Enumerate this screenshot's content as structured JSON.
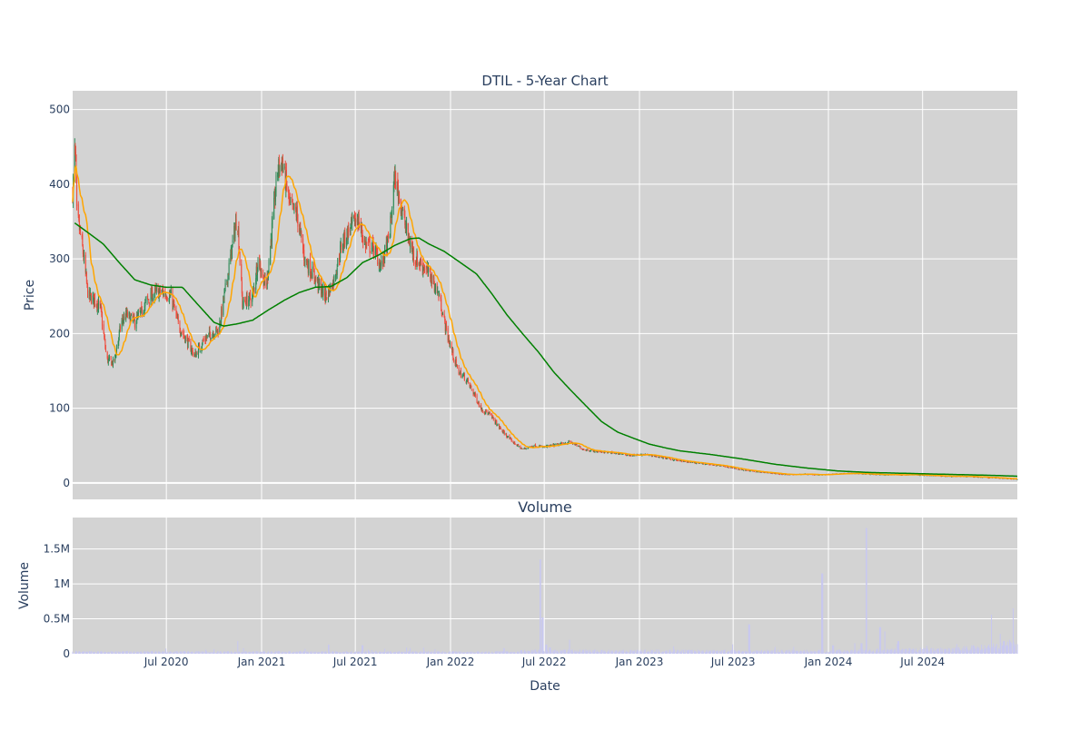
{
  "chart_data": [
    {
      "type": "candlestick",
      "title": "DTIL - 5-Year Chart",
      "xlabel": "",
      "ylabel": "Price",
      "ylim": [
        -22,
        525
      ],
      "yticks": [
        0,
        100,
        200,
        300,
        400,
        500
      ],
      "grid": true,
      "plot_bgcolor": "#d3d3d3",
      "up_color": "#2e8b57",
      "down_color": "#ef4b3c",
      "ma_colors": {
        "short": "#ffa500",
        "long": "#008000"
      },
      "price_keypoints": [
        [
          "2020-01-02",
          390
        ],
        [
          "2020-01-06",
          445
        ],
        [
          "2020-01-08",
          430
        ],
        [
          "2020-01-10",
          360
        ],
        [
          "2020-01-20",
          320
        ],
        [
          "2020-02-01",
          250
        ],
        [
          "2020-02-15",
          245
        ],
        [
          "2020-02-25",
          232
        ],
        [
          "2020-03-08",
          165
        ],
        [
          "2020-03-22",
          160
        ],
        [
          "2020-04-05",
          215
        ],
        [
          "2020-04-15",
          225
        ],
        [
          "2020-05-01",
          215
        ],
        [
          "2020-05-15",
          230
        ],
        [
          "2020-05-25",
          245
        ],
        [
          "2020-06-10",
          255
        ],
        [
          "2020-06-25",
          255
        ],
        [
          "2020-07-10",
          250
        ],
        [
          "2020-07-25",
          210
        ],
        [
          "2020-08-10",
          190
        ],
        [
          "2020-08-25",
          170
        ],
        [
          "2020-09-10",
          190
        ],
        [
          "2020-09-25",
          200
        ],
        [
          "2020-10-10",
          205
        ],
        [
          "2020-10-28",
          280
        ],
        [
          "2020-11-15",
          360
        ],
        [
          "2020-11-25",
          240
        ],
        [
          "2020-12-15",
          250
        ],
        [
          "2020-12-25",
          300
        ],
        [
          "2021-01-10",
          260
        ],
        [
          "2021-02-01",
          420
        ],
        [
          "2021-02-10",
          430
        ],
        [
          "2021-02-25",
          370
        ],
        [
          "2021-03-10",
          360
        ],
        [
          "2021-03-25",
          300
        ],
        [
          "2021-04-10",
          280
        ],
        [
          "2021-04-25",
          260
        ],
        [
          "2021-05-05",
          250
        ],
        [
          "2021-05-20",
          270
        ],
        [
          "2021-06-05",
          320
        ],
        [
          "2021-06-20",
          340
        ],
        [
          "2021-07-05",
          355
        ],
        [
          "2021-07-20",
          320
        ],
        [
          "2021-08-05",
          315
        ],
        [
          "2021-08-20",
          290
        ],
        [
          "2021-09-05",
          330
        ],
        [
          "2021-09-15",
          410
        ],
        [
          "2021-09-25",
          380
        ],
        [
          "2021-10-10",
          330
        ],
        [
          "2021-10-25",
          300
        ],
        [
          "2021-11-10",
          290
        ],
        [
          "2021-11-25",
          275
        ],
        [
          "2021-12-10",
          250
        ],
        [
          "2021-12-25",
          200
        ],
        [
          "2022-01-15",
          150
        ],
        [
          "2022-01-30",
          140
        ],
        [
          "2022-02-15",
          120
        ],
        [
          "2022-03-01",
          100
        ],
        [
          "2022-03-20",
          90
        ],
        [
          "2022-04-10",
          70
        ],
        [
          "2022-05-01",
          55
        ],
        [
          "2022-05-20",
          45
        ],
        [
          "2022-06-10",
          50
        ],
        [
          "2022-07-01",
          48
        ],
        [
          "2022-08-01",
          52
        ],
        [
          "2022-08-20",
          55
        ],
        [
          "2022-09-15",
          45
        ],
        [
          "2022-10-15",
          42
        ],
        [
          "2022-11-15",
          40
        ],
        [
          "2022-12-15",
          37
        ],
        [
          "2023-01-15",
          38
        ],
        [
          "2023-02-15",
          34
        ],
        [
          "2023-03-15",
          30
        ],
        [
          "2023-04-15",
          27
        ],
        [
          "2023-05-15",
          25
        ],
        [
          "2023-06-15",
          22
        ],
        [
          "2023-07-15",
          18
        ],
        [
          "2023-08-15",
          15
        ],
        [
          "2023-09-15",
          13
        ],
        [
          "2023-10-15",
          11
        ],
        [
          "2023-11-15",
          12
        ],
        [
          "2023-12-15",
          11
        ],
        [
          "2024-01-15",
          12
        ],
        [
          "2024-02-15",
          13
        ],
        [
          "2024-03-15",
          12
        ],
        [
          "2024-04-15",
          11
        ],
        [
          "2024-05-15",
          11
        ],
        [
          "2024-06-15",
          11
        ],
        [
          "2024-07-15",
          10
        ],
        [
          "2024-08-15",
          9
        ],
        [
          "2024-09-15",
          9
        ],
        [
          "2024-10-15",
          8
        ],
        [
          "2024-11-15",
          7
        ],
        [
          "2024-12-31",
          5
        ]
      ],
      "moving_average_long_keypoints": [
        [
          "2020-01-02",
          350
        ],
        [
          "2020-02-01",
          335
        ],
        [
          "2020-03-01",
          320
        ],
        [
          "2020-04-01",
          295
        ],
        [
          "2020-05-01",
          272
        ],
        [
          "2020-06-01",
          265
        ],
        [
          "2020-07-01",
          262
        ],
        [
          "2020-08-01",
          262
        ],
        [
          "2020-09-01",
          238
        ],
        [
          "2020-10-01",
          215
        ],
        [
          "2020-10-20",
          210
        ],
        [
          "2020-11-15",
          213
        ],
        [
          "2020-12-15",
          218
        ],
        [
          "2021-01-15",
          232
        ],
        [
          "2021-02-15",
          245
        ],
        [
          "2021-03-15",
          255
        ],
        [
          "2021-04-15",
          262
        ],
        [
          "2021-05-15",
          263
        ],
        [
          "2021-06-15",
          275
        ],
        [
          "2021-07-15",
          295
        ],
        [
          "2021-08-15",
          305
        ],
        [
          "2021-09-15",
          318
        ],
        [
          "2021-10-15",
          327
        ],
        [
          "2021-11-01",
          328
        ],
        [
          "2021-11-20",
          320
        ],
        [
          "2021-12-20",
          310
        ],
        [
          "2022-01-20",
          295
        ],
        [
          "2022-02-20",
          280
        ],
        [
          "2022-03-20",
          255
        ],
        [
          "2022-04-20",
          225
        ],
        [
          "2022-05-20",
          200
        ],
        [
          "2022-06-20",
          175
        ],
        [
          "2022-07-20",
          148
        ],
        [
          "2022-08-20",
          125
        ],
        [
          "2022-09-20",
          103
        ],
        [
          "2022-10-20",
          82
        ],
        [
          "2022-11-20",
          68
        ],
        [
          "2022-12-20",
          60
        ],
        [
          "2023-01-20",
          52
        ],
        [
          "2023-02-20",
          47
        ],
        [
          "2023-03-20",
          43
        ],
        [
          "2023-05-20",
          38
        ],
        [
          "2023-07-20",
          32
        ],
        [
          "2023-09-20",
          25
        ],
        [
          "2023-11-20",
          20
        ],
        [
          "2024-01-20",
          16
        ],
        [
          "2024-03-20",
          14
        ],
        [
          "2024-05-20",
          13
        ],
        [
          "2024-07-20",
          12
        ],
        [
          "2024-09-20",
          11
        ],
        [
          "2024-11-20",
          10
        ],
        [
          "2024-12-31",
          9
        ]
      ]
    },
    {
      "type": "bar",
      "title": "Volume",
      "xlabel": "Date",
      "ylabel": "Volume",
      "ylim": [
        0,
        1950000
      ],
      "yticks": [
        0,
        500000,
        1000000,
        1500000
      ],
      "ytick_labels": [
        "0",
        "0.5M",
        "1M",
        "1.5M"
      ],
      "xrange": [
        "2020-01-02",
        "2024-12-31"
      ],
      "xticks": [
        "2020-07-01",
        "2021-01-01",
        "2021-07-01",
        "2022-01-01",
        "2022-07-01",
        "2023-01-01",
        "2023-07-01",
        "2024-01-01",
        "2024-07-01"
      ],
      "xtick_labels": [
        "Jul 2020",
        "Jan 2021",
        "Jul 2021",
        "Jan 2022",
        "Jul 2022",
        "Jan 2023",
        "Jul 2023",
        "Jan 2024",
        "Jul 2024"
      ],
      "grid": true,
      "plot_bgcolor": "#d3d3d3",
      "bar_color": "#c8c8f0",
      "volume_spikes": [
        [
          "2020-04-10",
          35000
        ],
        [
          "2020-11-15",
          180000
        ],
        [
          "2021-05-10",
          130000
        ],
        [
          "2021-07-15",
          120000
        ],
        [
          "2022-04-15",
          80000
        ],
        [
          "2022-06-24",
          1350000
        ],
        [
          "2022-06-28",
          520000
        ],
        [
          "2022-07-05",
          130000
        ],
        [
          "2022-07-12",
          90000
        ],
        [
          "2022-08-20",
          200000
        ],
        [
          "2023-08-01",
          420000
        ],
        [
          "2023-12-20",
          1150000
        ],
        [
          "2024-01-10",
          120000
        ],
        [
          "2024-03-05",
          150000
        ],
        [
          "2024-03-15",
          1800000
        ],
        [
          "2024-04-10",
          380000
        ],
        [
          "2024-04-20",
          320000
        ],
        [
          "2024-05-15",
          180000
        ],
        [
          "2024-11-10",
          560000
        ],
        [
          "2024-12-05",
          180000
        ],
        [
          "2024-12-15",
          200000
        ],
        [
          "2024-12-22",
          650000
        ]
      ],
      "volume_baseline": [
        [
          "2020-01-02",
          25000
        ],
        [
          "2022-05-01",
          25000
        ],
        [
          "2022-06-01",
          40000
        ],
        [
          "2023-12-01",
          35000
        ],
        [
          "2024-06-01",
          50000
        ],
        [
          "2024-09-01",
          60000
        ],
        [
          "2024-12-31",
          120000
        ]
      ]
    }
  ]
}
